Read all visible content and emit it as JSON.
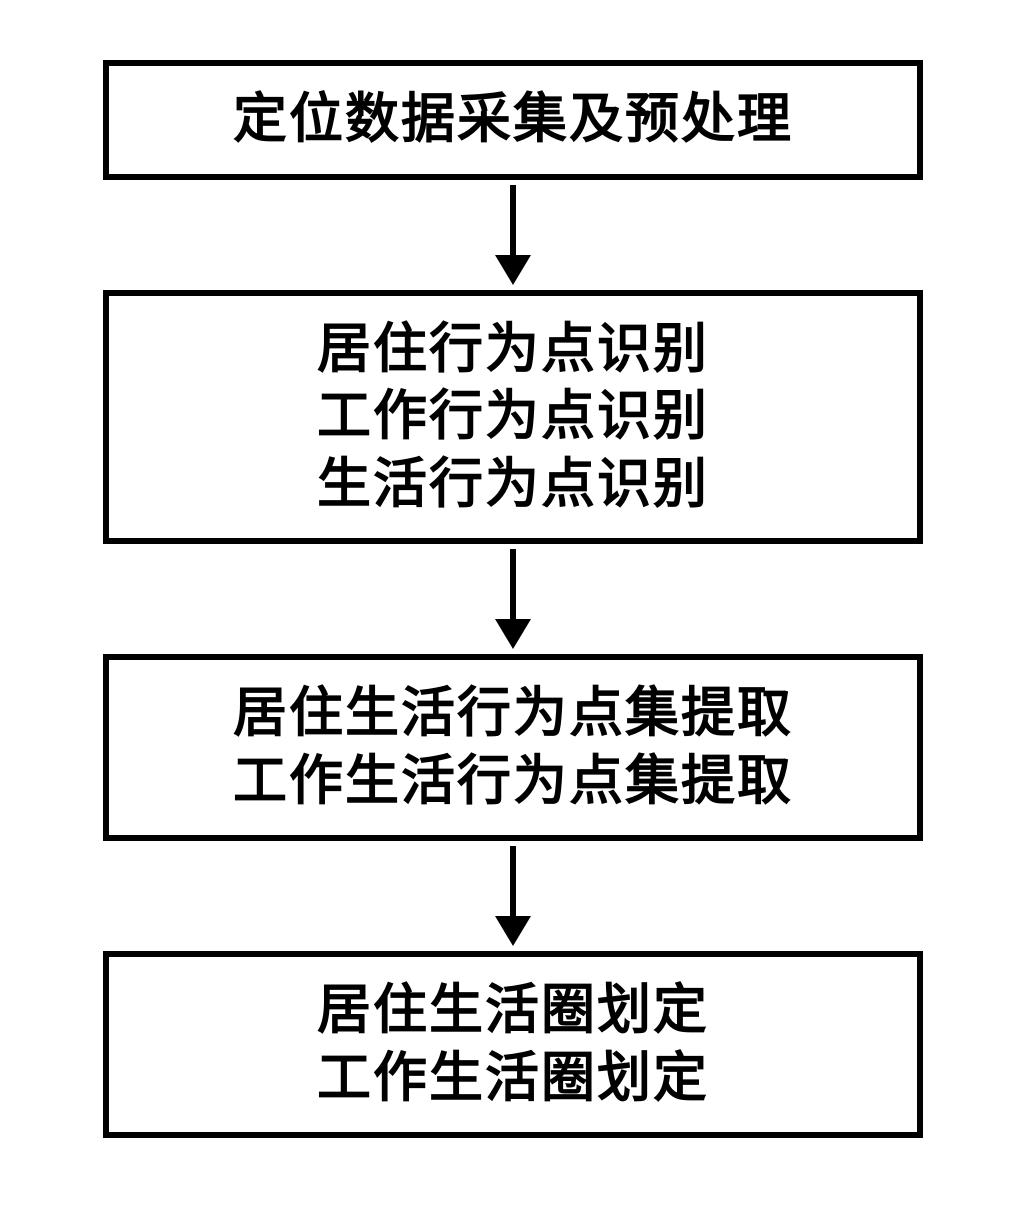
{
  "flowchart": {
    "type": "flowchart",
    "direction": "vertical",
    "background_color": "#ffffff",
    "box_border_color": "#000000",
    "box_border_width": 6,
    "box_fill_color": "#ffffff",
    "text_color": "#000000",
    "font_size": 54,
    "font_weight": 900,
    "arrow_color": "#000000",
    "arrow_line_width": 6,
    "arrow_head_width": 36,
    "arrow_head_height": 30,
    "nodes": [
      {
        "id": "box1",
        "lines": [
          "定位数据采集及预处理"
        ]
      },
      {
        "id": "box2",
        "lines": [
          "居住行为点识别",
          "工作行为点识别",
          "生活行为点识别"
        ]
      },
      {
        "id": "box3",
        "lines": [
          "居住生活行为点集提取",
          "工作生活行为点集提取"
        ]
      },
      {
        "id": "box4",
        "lines": [
          "居住生活圈划定",
          "工作生活圈划定"
        ]
      }
    ],
    "edges": [
      {
        "from": "box1",
        "to": "box2"
      },
      {
        "from": "box2",
        "to": "box3"
      },
      {
        "from": "box3",
        "to": "box4"
      }
    ]
  }
}
